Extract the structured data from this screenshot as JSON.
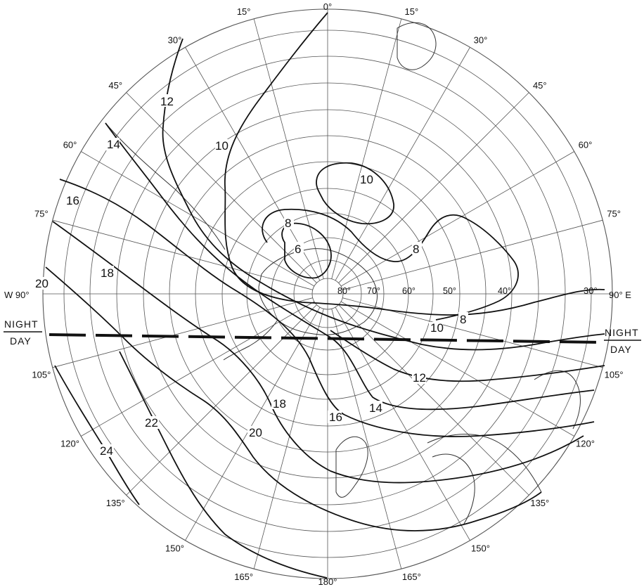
{
  "longitude_labels": {
    "top": [
      "0°",
      "15°",
      "15°",
      "30°",
      "30°",
      "45°",
      "45°",
      "60°",
      "60°",
      "75°",
      "75°"
    ],
    "left_side": "W 90°",
    "right_side": "30°",
    "right_direction": "90° E",
    "lower_left": [
      "105°",
      "120°",
      "135°",
      "150°",
      "165°"
    ],
    "bottom": "180°",
    "lower_right": [
      "165°",
      "150°",
      "135°",
      "120°",
      "105°"
    ]
  },
  "latitude_labels": [
    "80°",
    "70°",
    "60°",
    "50°",
    "40°"
  ],
  "contour_labels": [
    "6",
    "8",
    "8",
    "8",
    "10",
    "10",
    "10",
    "12",
    "12",
    "14",
    "14",
    "16",
    "16",
    "18",
    "18",
    "20",
    "20",
    "22",
    "24"
  ],
  "terminator": {
    "upper_label": "NIGHT",
    "lower_label": "DAY"
  },
  "colors": {
    "ink": "#111111",
    "grid": "#555555",
    "coast": "#333333",
    "background": "#ffffff"
  }
}
